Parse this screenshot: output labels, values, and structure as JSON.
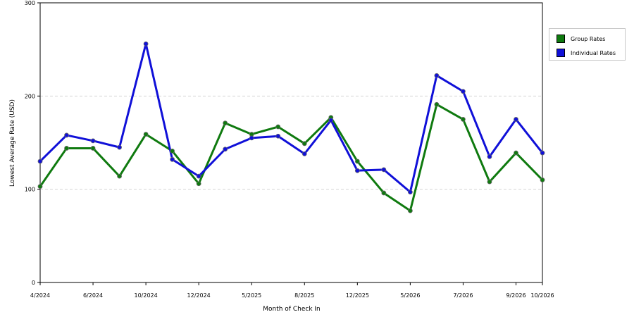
{
  "chart_data": {
    "type": "line",
    "xlabel": "Month of Check In",
    "ylabel": "Lowest Average Rate (USD)",
    "ylim": [
      0,
      300
    ],
    "yticks": [
      "0",
      "100",
      "200",
      "300"
    ],
    "grid": "horizontal dashed",
    "legend_position": "right",
    "x_tick_labels": [
      "4/2024",
      "6/2024",
      "10/2024",
      "12/2024",
      "5/2025",
      "8/2025",
      "12/2025",
      "5/2026",
      "7/2026",
      "9/2026",
      "10/2026"
    ],
    "x_tick_positions": [
      0,
      2,
      4,
      6,
      8,
      10,
      12,
      14,
      16,
      18,
      19
    ],
    "series": [
      {
        "name": "Group Rates",
        "color": "#0f7a0f",
        "values": [
          103,
          144,
          144,
          114,
          159,
          141,
          106,
          171,
          159,
          167,
          149,
          177,
          130,
          96,
          77,
          191,
          175,
          108,
          139,
          110
        ]
      },
      {
        "name": "Individual Rates",
        "color": "#1010d8",
        "values": [
          130,
          158,
          152,
          145,
          256,
          132,
          114,
          143,
          155,
          157,
          138,
          174,
          120,
          121,
          97,
          222,
          205,
          135,
          175,
          139
        ]
      }
    ]
  }
}
